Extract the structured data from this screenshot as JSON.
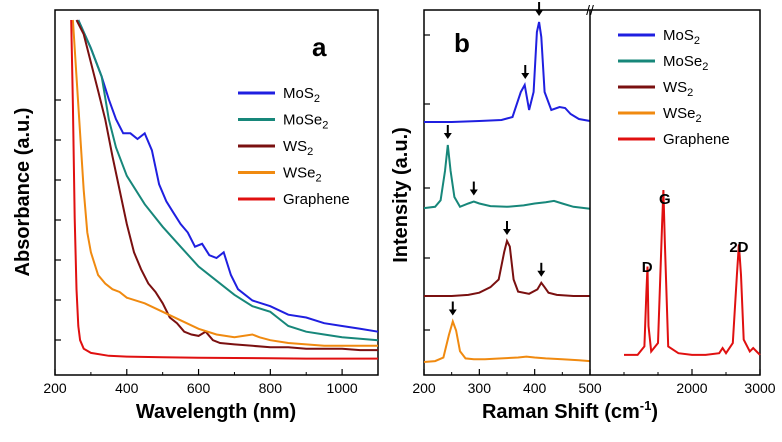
{
  "chart_data": [
    {
      "panel": "a",
      "type": "line",
      "xlabel": "Wavelength (nm)",
      "ylabel": "Absorbance (a.u.)",
      "xlim": [
        200,
        1100
      ],
      "x_ticks": [
        "200",
        "400",
        "600",
        "800",
        "1000"
      ],
      "y_ticks_labeled": false,
      "legend_position": "right",
      "series": [
        {
          "name": "MoS2",
          "color": "#1f1fe0",
          "x": [
            265,
            300,
            330,
            350,
            370,
            390,
            410,
            430,
            450,
            470,
            490,
            510,
            530,
            550,
            570,
            590,
            610,
            630,
            650,
            670,
            690,
            710,
            750,
            800,
            850,
            900,
            950,
            1000,
            1050,
            1100
          ],
          "y": [
            1.2,
            1.1,
            1.0,
            0.92,
            0.85,
            0.8,
            0.8,
            0.78,
            0.8,
            0.74,
            0.62,
            0.56,
            0.52,
            0.48,
            0.45,
            0.4,
            0.41,
            0.37,
            0.36,
            0.38,
            0.3,
            0.25,
            0.21,
            0.19,
            0.16,
            0.15,
            0.13,
            0.12,
            0.11,
            0.1
          ]
        },
        {
          "name": "MoSe2",
          "color": "#17877a",
          "x": [
            265,
            300,
            330,
            350,
            370,
            400,
            450,
            500,
            550,
            600,
            650,
            700,
            750,
            800,
            820,
            850,
            900,
            950,
            1000,
            1050,
            1100
          ],
          "y": [
            1.2,
            1.1,
            1.0,
            0.85,
            0.75,
            0.65,
            0.55,
            0.47,
            0.4,
            0.33,
            0.28,
            0.23,
            0.19,
            0.17,
            0.15,
            0.12,
            0.1,
            0.09,
            0.08,
            0.075,
            0.07
          ]
        },
        {
          "name": "WS2",
          "color": "#7a1010",
          "x": [
            260,
            280,
            300,
            320,
            340,
            360,
            380,
            400,
            420,
            440,
            460,
            480,
            500,
            520,
            540,
            560,
            580,
            600,
            620,
            640,
            660,
            700,
            750,
            800,
            850,
            900,
            950,
            1000,
            1050,
            1100
          ],
          "y": [
            1.2,
            1.15,
            1.05,
            0.95,
            0.85,
            0.72,
            0.6,
            0.48,
            0.38,
            0.32,
            0.27,
            0.24,
            0.2,
            0.15,
            0.13,
            0.1,
            0.09,
            0.085,
            0.1,
            0.07,
            0.06,
            0.055,
            0.05,
            0.045,
            0.045,
            0.04,
            0.04,
            0.04,
            0.035,
            0.035
          ]
        },
        {
          "name": "WSe2",
          "color": "#f08a10",
          "x": [
            250,
            260,
            270,
            280,
            290,
            300,
            320,
            340,
            360,
            380,
            400,
            450,
            500,
            550,
            600,
            650,
            700,
            750,
            770,
            800,
            850,
            900,
            950,
            1000,
            1050,
            1100
          ],
          "y": [
            1.2,
            1.0,
            0.8,
            0.6,
            0.45,
            0.38,
            0.3,
            0.27,
            0.25,
            0.24,
            0.22,
            0.2,
            0.17,
            0.14,
            0.11,
            0.09,
            0.08,
            0.09,
            0.08,
            0.07,
            0.06,
            0.055,
            0.05,
            0.05,
            0.05,
            0.05
          ]
        },
        {
          "name": "Graphene",
          "color": "#e01010",
          "x": [
            245,
            250,
            255,
            260,
            265,
            270,
            280,
            300,
            350,
            400,
            500,
            600,
            700,
            800,
            900,
            1000,
            1100
          ],
          "y": [
            1.2,
            0.9,
            0.5,
            0.25,
            0.12,
            0.07,
            0.04,
            0.025,
            0.015,
            0.012,
            0.01,
            0.008,
            0.007,
            0.006,
            0.005,
            0.005,
            0.005
          ]
        }
      ]
    },
    {
      "panel": "b",
      "type": "line",
      "xlabel": "Raman Shift (cm⁻¹)",
      "ylabel": "Intensity (a.u.)",
      "broken_x_axis": true,
      "x_ticks": [
        "200",
        "300",
        "400",
        "500",
        "2000",
        "3000"
      ],
      "y_ticks_labeled": false,
      "legend_position": "top-right",
      "series": [
        {
          "name": "MoS2",
          "color": "#1f1fe0",
          "x": [
            200,
            250,
            300,
            340,
            360,
            375,
            382,
            390,
            398,
            404,
            408,
            412,
            418,
            430,
            445,
            455,
            465,
            480,
            500
          ],
          "y": [
            0.0,
            0.0,
            0.01,
            0.02,
            0.05,
            0.3,
            0.37,
            0.12,
            0.3,
            0.9,
            1.0,
            0.85,
            0.3,
            0.12,
            0.15,
            0.14,
            0.08,
            0.03,
            0.01
          ]
        },
        {
          "name": "MoSe2",
          "color": "#17877a",
          "x": [
            200,
            220,
            230,
            238,
            243,
            248,
            255,
            265,
            280,
            290,
            300,
            320,
            350,
            380,
            400,
            420,
            435,
            450,
            470,
            500
          ],
          "y": [
            0.03,
            0.05,
            0.15,
            0.6,
            1.0,
            0.6,
            0.2,
            0.05,
            0.1,
            0.13,
            0.1,
            0.06,
            0.05,
            0.07,
            0.1,
            0.12,
            0.14,
            0.1,
            0.05,
            0.02
          ]
        },
        {
          "name": "WS2",
          "color": "#7a1010",
          "x": [
            200,
            250,
            280,
            300,
            320,
            335,
            345,
            350,
            355,
            362,
            370,
            390,
            405,
            412,
            418,
            425,
            440,
            470,
            500
          ],
          "y": [
            0.0,
            0.0,
            0.01,
            0.03,
            0.08,
            0.15,
            0.4,
            0.5,
            0.45,
            0.15,
            0.04,
            0.02,
            0.06,
            0.12,
            0.08,
            0.03,
            0.01,
            0.0,
            0.0
          ]
        },
        {
          "name": "WSe2",
          "color": "#f08a10",
          "x": [
            200,
            220,
            235,
            245,
            252,
            258,
            265,
            275,
            290,
            310,
            340,
            370,
            385,
            400,
            420,
            450,
            480,
            500
          ],
          "y": [
            0.0,
            0.01,
            0.05,
            0.3,
            0.45,
            0.35,
            0.12,
            0.04,
            0.03,
            0.03,
            0.04,
            0.05,
            0.06,
            0.05,
            0.04,
            0.03,
            0.02,
            0.01
          ]
        },
        {
          "name": "Graphene",
          "color": "#e01010",
          "x": [
            1000,
            1200,
            1300,
            1330,
            1345,
            1360,
            1400,
            1500,
            1560,
            1580,
            1600,
            1650,
            1800,
            2000,
            2200,
            2400,
            2450,
            2500,
            2600,
            2660,
            2690,
            2720,
            2760,
            2850,
            2900,
            2950,
            3000
          ],
          "y": [
            0.03,
            0.03,
            0.08,
            0.4,
            0.55,
            0.2,
            0.05,
            0.1,
            0.8,
            1.0,
            0.7,
            0.08,
            0.04,
            0.03,
            0.03,
            0.04,
            0.07,
            0.04,
            0.1,
            0.5,
            0.68,
            0.5,
            0.12,
            0.05,
            0.07,
            0.05,
            0.03
          ]
        }
      ],
      "peak_labels": [
        "D",
        "G",
        "2D"
      ]
    }
  ],
  "panel_a": {
    "letter": "a"
  },
  "panel_b": {
    "letter": "b"
  },
  "axis_break_mark": "//"
}
